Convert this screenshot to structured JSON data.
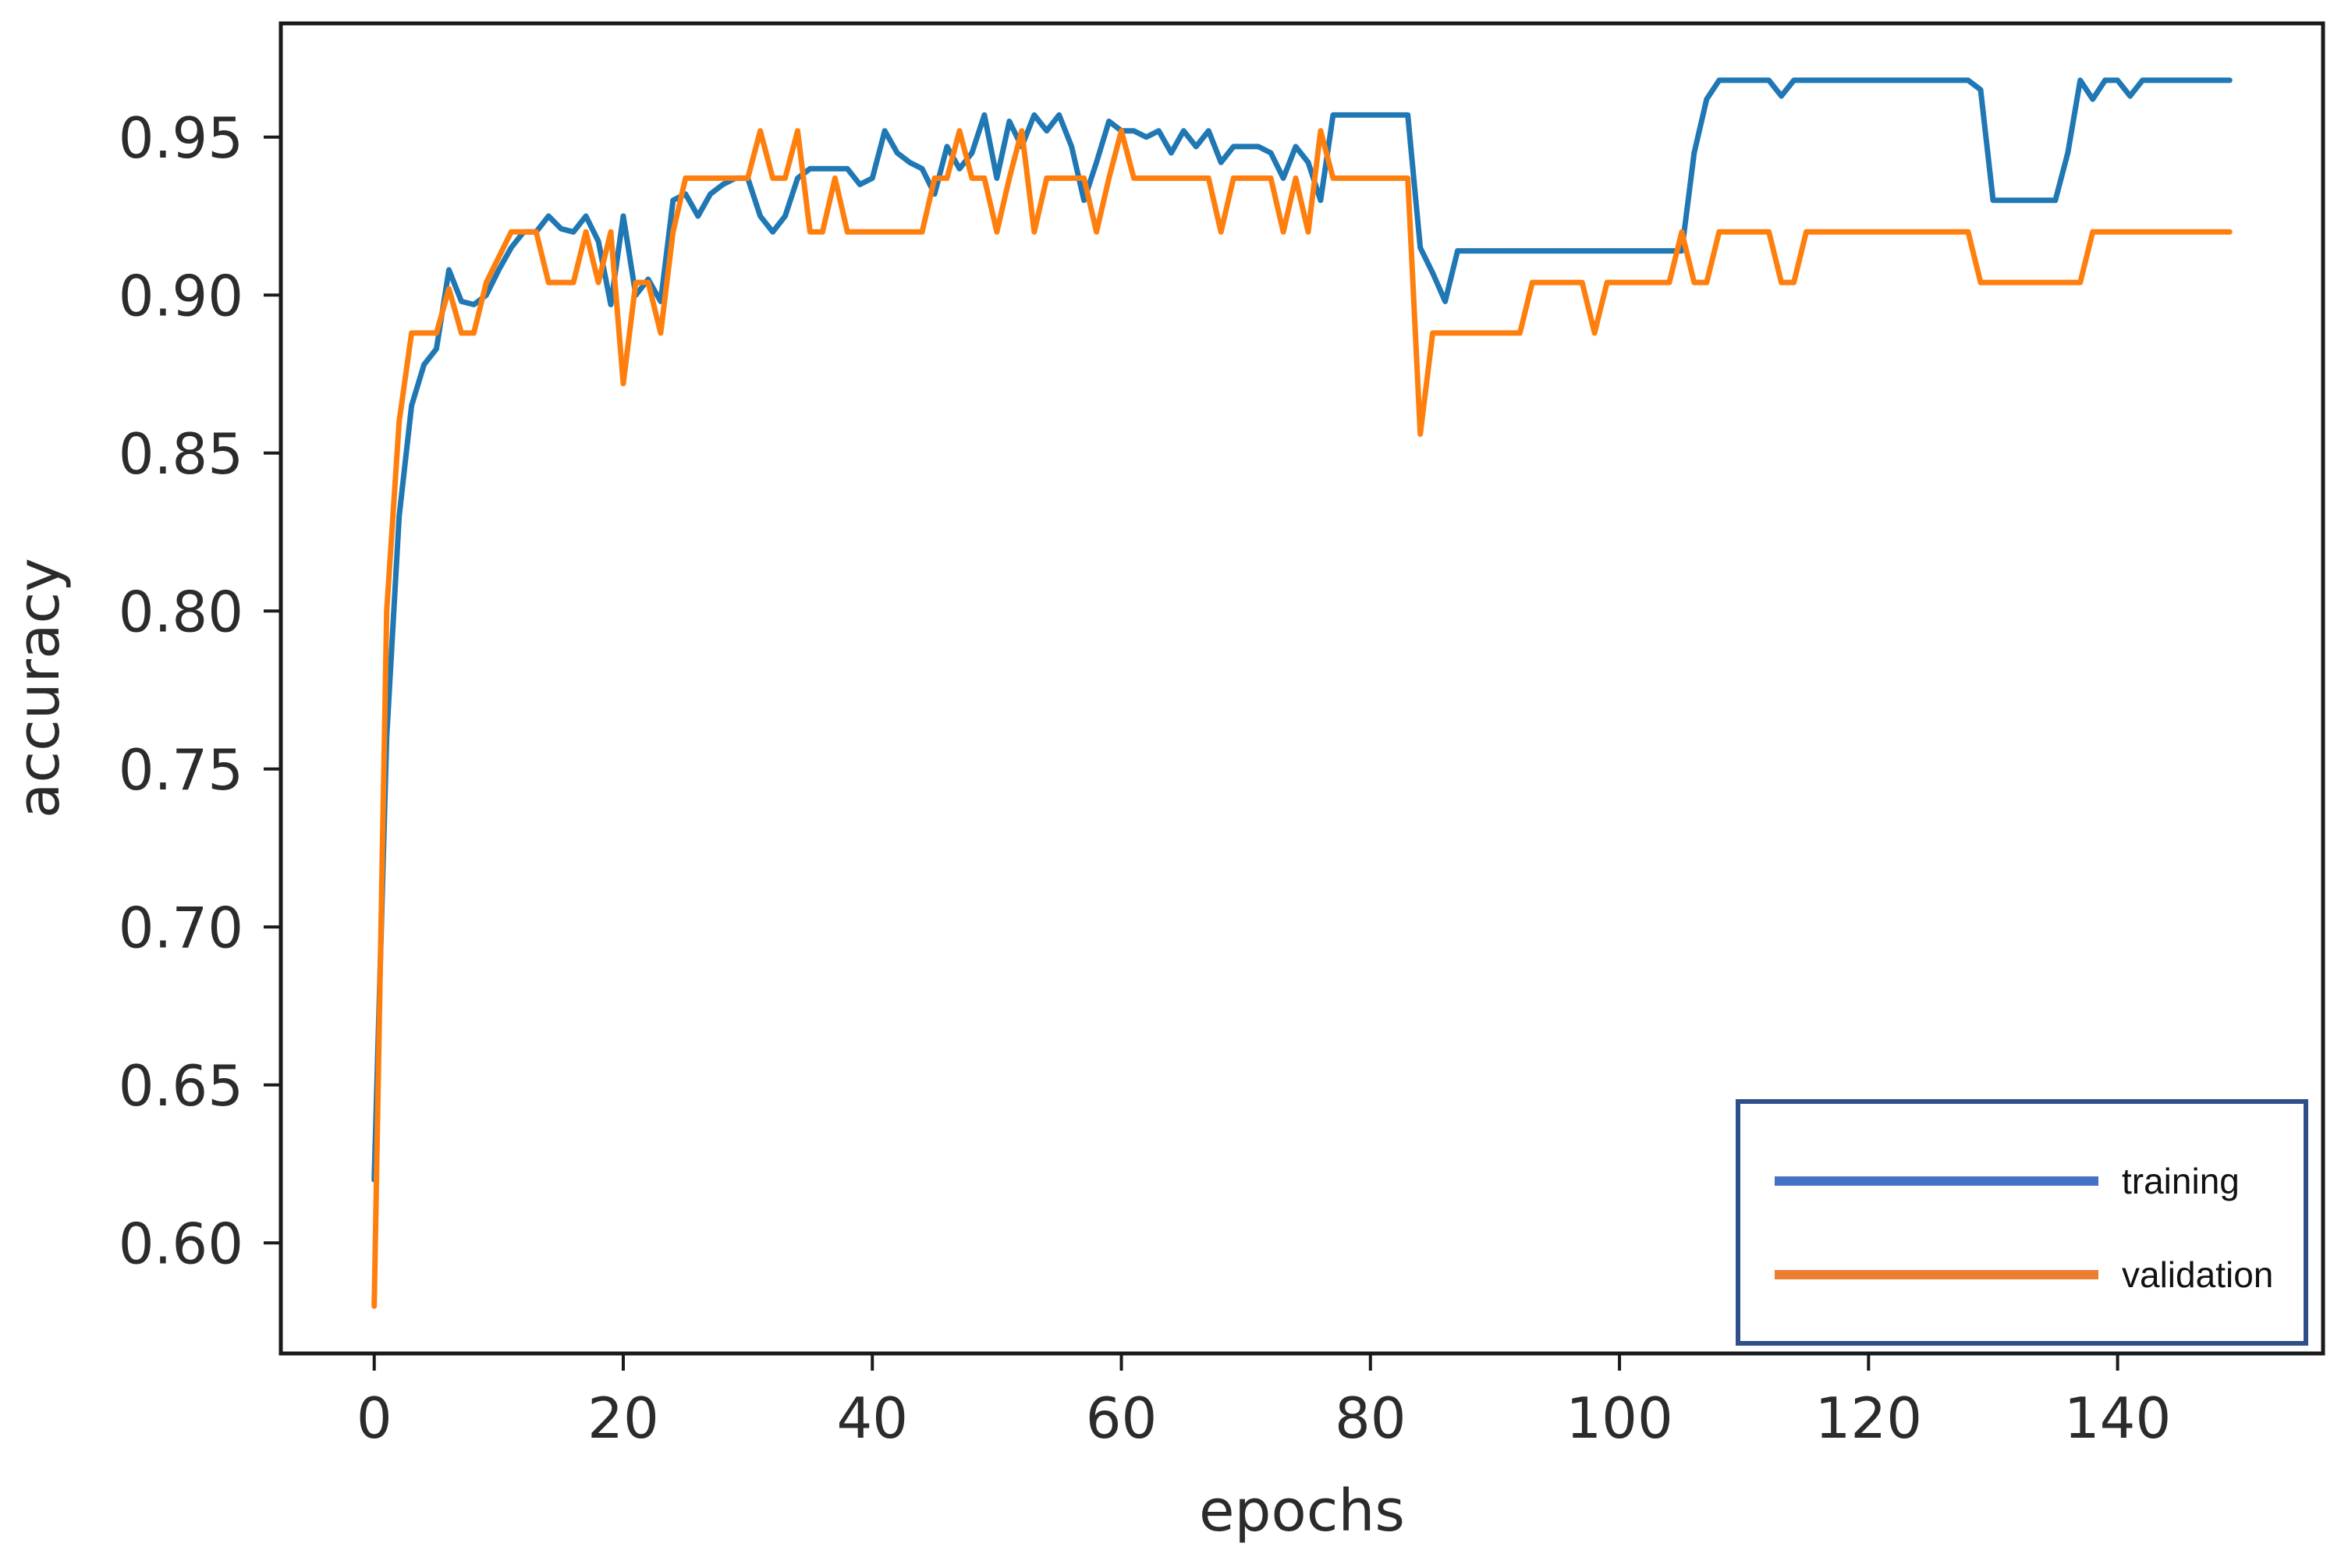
{
  "chart_data": {
    "type": "line",
    "title": "",
    "xlabel": "epochs",
    "ylabel": "accuracy",
    "xlim": [
      -7.5,
      156.5
    ],
    "ylim": [
      0.565,
      0.986
    ],
    "xticks": [
      0,
      20,
      40,
      60,
      80,
      100,
      120,
      140
    ],
    "xtick_labels": [
      "0",
      "20",
      "40",
      "60",
      "80",
      "100",
      "120",
      "140"
    ],
    "yticks": [
      0.6,
      0.65,
      0.7,
      0.75,
      0.8,
      0.85,
      0.9,
      0.95
    ],
    "ytick_labels": [
      "0.60",
      "0.65",
      "0.70",
      "0.75",
      "0.80",
      "0.85",
      "0.90",
      "0.95"
    ],
    "grid": false,
    "legend": {
      "placement": "bottom-right",
      "border_color": "#2f4f8a",
      "entries": [
        {
          "label": "training",
          "color": "#4472c4"
        },
        {
          "label": "validation",
          "color": "#ed7d31"
        }
      ]
    },
    "series": [
      {
        "name": "training",
        "color": "#1f77b4",
        "x": [
          0,
          1,
          2,
          3,
          4,
          5,
          6,
          7,
          8,
          9,
          10,
          11,
          12,
          13,
          14,
          15,
          16,
          17,
          18,
          19,
          20,
          21,
          22,
          23,
          24,
          25,
          26,
          27,
          28,
          29,
          30,
          31,
          32,
          33,
          34,
          35,
          36,
          37,
          38,
          39,
          40,
          41,
          42,
          43,
          44,
          45,
          46,
          47,
          48,
          49,
          50,
          51,
          52,
          53,
          54,
          55,
          56,
          57,
          58,
          59,
          60,
          61,
          62,
          63,
          64,
          65,
          66,
          67,
          68,
          69,
          70,
          71,
          72,
          73,
          74,
          75,
          76,
          77,
          78,
          79,
          80,
          81,
          82,
          83,
          84,
          85,
          86,
          87,
          88,
          89,
          90,
          91,
          92,
          93,
          94,
          95,
          96,
          97,
          98,
          99,
          100,
          101,
          102,
          103,
          104,
          105,
          106,
          107,
          108,
          109,
          110,
          111,
          112,
          113,
          114,
          115,
          116,
          117,
          118,
          119,
          120,
          121,
          122,
          123,
          124,
          125,
          126,
          127,
          128,
          129,
          130,
          131,
          132,
          133,
          134,
          135,
          136,
          137,
          138,
          139,
          140,
          141,
          142,
          143,
          144,
          145,
          146,
          147,
          148,
          149
        ],
        "y": [
          0.62,
          0.76,
          0.83,
          0.865,
          0.878,
          0.883,
          0.908,
          0.898,
          0.897,
          0.9,
          0.908,
          0.915,
          0.92,
          0.92,
          0.925,
          0.921,
          0.92,
          0.925,
          0.917,
          0.897,
          0.925,
          0.9,
          0.905,
          0.898,
          0.93,
          0.932,
          0.925,
          0.932,
          0.935,
          0.937,
          0.937,
          0.925,
          0.92,
          0.925,
          0.937,
          0.94,
          0.94,
          0.94,
          0.94,
          0.935,
          0.937,
          0.952,
          0.945,
          0.942,
          0.94,
          0.932,
          0.947,
          0.94,
          0.945,
          0.957,
          0.937,
          0.955,
          0.947,
          0.957,
          0.952,
          0.957,
          0.947,
          0.93,
          0.942,
          0.955,
          0.952,
          0.952,
          0.95,
          0.952,
          0.945,
          0.952,
          0.947,
          0.952,
          0.942,
          0.947,
          0.947,
          0.947,
          0.945,
          0.937,
          0.947,
          0.942,
          0.93,
          0.957,
          0.957,
          0.957,
          0.957,
          0.957,
          0.957,
          0.957,
          0.915,
          0.907,
          0.898,
          0.914,
          0.914,
          0.914,
          0.914,
          0.914,
          0.914,
          0.914,
          0.914,
          0.914,
          0.914,
          0.914,
          0.914,
          0.914,
          0.914,
          0.914,
          0.914,
          0.914,
          0.914,
          0.914,
          0.945,
          0.962,
          0.968,
          0.968,
          0.968,
          0.968,
          0.968,
          0.963,
          0.968,
          0.968,
          0.968,
          0.968,
          0.968,
          0.968,
          0.968,
          0.968,
          0.968,
          0.968,
          0.968,
          0.968,
          0.968,
          0.968,
          0.968,
          0.965,
          0.93,
          0.93,
          0.93,
          0.93,
          0.93,
          0.93,
          0.945,
          0.968,
          0.962,
          0.968,
          0.968,
          0.963,
          0.968,
          0.968,
          0.968,
          0.968,
          0.968,
          0.968,
          0.968,
          0.968
        ]
      },
      {
        "name": "validation",
        "color": "#ff7f0e",
        "x": [
          0,
          1,
          2,
          3,
          4,
          5,
          6,
          7,
          8,
          9,
          10,
          11,
          12,
          13,
          14,
          15,
          16,
          17,
          18,
          19,
          20,
          21,
          22,
          23,
          24,
          25,
          26,
          27,
          28,
          29,
          30,
          31,
          32,
          33,
          34,
          35,
          36,
          37,
          38,
          39,
          40,
          41,
          42,
          43,
          44,
          45,
          46,
          47,
          48,
          49,
          50,
          51,
          52,
          53,
          54,
          55,
          56,
          57,
          58,
          59,
          60,
          61,
          62,
          63,
          64,
          65,
          66,
          67,
          68,
          69,
          70,
          71,
          72,
          73,
          74,
          75,
          76,
          77,
          78,
          79,
          80,
          81,
          82,
          83,
          84,
          85,
          86,
          87,
          88,
          89,
          90,
          91,
          92,
          93,
          94,
          95,
          96,
          97,
          98,
          99,
          100,
          101,
          102,
          103,
          104,
          105,
          106,
          107,
          108,
          109,
          110,
          111,
          112,
          113,
          114,
          115,
          116,
          117,
          118,
          119,
          120,
          121,
          122,
          123,
          124,
          125,
          126,
          127,
          128,
          129,
          130,
          131,
          132,
          133,
          134,
          135,
          136,
          137,
          138,
          139,
          140,
          141,
          142,
          143,
          144,
          145,
          146,
          147,
          148,
          149
        ],
        "y": [
          0.58,
          0.8,
          0.86,
          0.888,
          0.888,
          0.888,
          0.902,
          0.888,
          0.888,
          0.904,
          0.912,
          0.92,
          0.92,
          0.92,
          0.904,
          0.904,
          0.904,
          0.92,
          0.904,
          0.92,
          0.872,
          0.904,
          0.904,
          0.888,
          0.92,
          0.937,
          0.937,
          0.937,
          0.937,
          0.937,
          0.937,
          0.952,
          0.937,
          0.937,
          0.952,
          0.92,
          0.92,
          0.937,
          0.92,
          0.92,
          0.92,
          0.92,
          0.92,
          0.92,
          0.92,
          0.937,
          0.937,
          0.952,
          0.937,
          0.937,
          0.92,
          0.937,
          0.952,
          0.92,
          0.937,
          0.937,
          0.937,
          0.937,
          0.92,
          0.937,
          0.952,
          0.937,
          0.937,
          0.937,
          0.937,
          0.937,
          0.937,
          0.937,
          0.92,
          0.937,
          0.937,
          0.937,
          0.937,
          0.92,
          0.937,
          0.92,
          0.952,
          0.937,
          0.937,
          0.937,
          0.937,
          0.937,
          0.937,
          0.937,
          0.856,
          0.888,
          0.888,
          0.888,
          0.888,
          0.888,
          0.888,
          0.888,
          0.888,
          0.904,
          0.904,
          0.904,
          0.904,
          0.904,
          0.888,
          0.904,
          0.904,
          0.904,
          0.904,
          0.904,
          0.904,
          0.92,
          0.904,
          0.904,
          0.92,
          0.92,
          0.92,
          0.92,
          0.92,
          0.904,
          0.904,
          0.92,
          0.92,
          0.92,
          0.92,
          0.92,
          0.92,
          0.92,
          0.92,
          0.92,
          0.92,
          0.92,
          0.92,
          0.92,
          0.92,
          0.904,
          0.904,
          0.904,
          0.904,
          0.904,
          0.904,
          0.904,
          0.904,
          0.904,
          0.92,
          0.92,
          0.92,
          0.92,
          0.92,
          0.92,
          0.92,
          0.92,
          0.92,
          0.92,
          0.92,
          0.92
        ]
      }
    ]
  }
}
